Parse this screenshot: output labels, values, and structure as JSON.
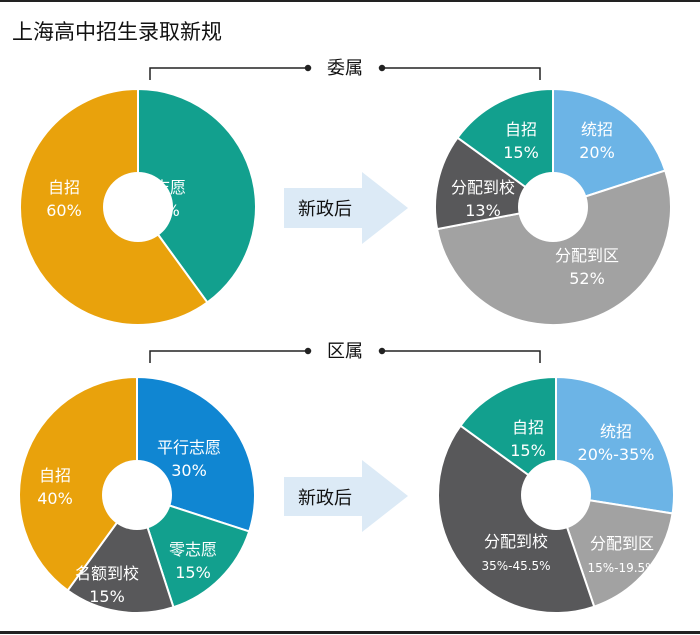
{
  "title": "上海高中招生录取新规",
  "arrow_label": "新政后",
  "colors": {
    "orange": "#E9A20C",
    "teal": "#12A08E",
    "light_blue": "#6CB4E6",
    "blue": "#1086D2",
    "gray": "#A2A2A2",
    "dark_gray": "#58585A",
    "arrow": "#DCEAF6"
  },
  "chart_data": [
    {
      "type": "pie",
      "group": "委属",
      "stage": "before",
      "slices": [
        {
          "name": "零志愿",
          "label": "40%",
          "value": 40,
          "color": "#12A08E"
        },
        {
          "name": "自招",
          "label": "60%",
          "value": 60,
          "color": "#E9A20C"
        }
      ]
    },
    {
      "type": "pie",
      "group": "委属",
      "stage": "after",
      "slices": [
        {
          "name": "统招",
          "label": "20%",
          "value": 20,
          "color": "#6CB4E6"
        },
        {
          "name": "分配到区",
          "label": "52%",
          "value": 52,
          "color": "#A2A2A2"
        },
        {
          "name": "分配到校",
          "label": "13%",
          "value": 13,
          "color": "#58585A"
        },
        {
          "name": "自招",
          "label": "15%",
          "value": 15,
          "color": "#12A08E"
        }
      ]
    },
    {
      "type": "pie",
      "group": "区属",
      "stage": "before",
      "slices": [
        {
          "name": "平行志愿",
          "label": "30%",
          "value": 30,
          "color": "#1086D2"
        },
        {
          "name": "零志愿",
          "label": "15%",
          "value": 15,
          "color": "#12A08E"
        },
        {
          "name": "名额到校",
          "label": "15%",
          "value": 15,
          "color": "#58585A"
        },
        {
          "name": "自招",
          "label": "40%",
          "value": 40,
          "color": "#E9A20C"
        }
      ]
    },
    {
      "type": "pie",
      "group": "区属",
      "stage": "after",
      "slices": [
        {
          "name": "统招",
          "label": "20%-35%",
          "value": 27.5,
          "color": "#6CB4E6"
        },
        {
          "name": "分配到区",
          "label": "15%-19.5%",
          "value": 17.25,
          "color": "#A2A2A2"
        },
        {
          "name": "分配到校",
          "label": "35%-45.5%",
          "value": 40.25,
          "color": "#58585A"
        },
        {
          "name": "自招",
          "label": "15%",
          "value": 15,
          "color": "#12A08E"
        }
      ]
    }
  ]
}
